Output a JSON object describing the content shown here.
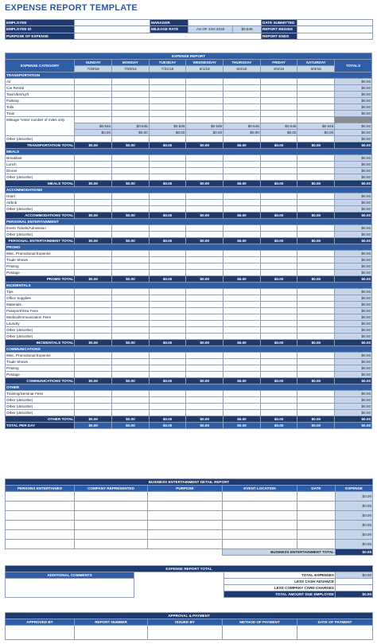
{
  "title": "EXPENSE REPORT TEMPLATE",
  "header": {
    "employee": "EMPLOYEE",
    "employee_id": "EMPLOYEE ID",
    "purpose": "PURPOSE OF EXPENSE",
    "manager": "MANAGER",
    "mileage_rate": "MILEAGE RATE",
    "mileage_as_of": "AS OF JAN 2018",
    "mileage_value": "$0.545",
    "date_submitted": "DATE SUBMITTED",
    "report_begins": "REPORT BEGINS",
    "report_ends": "REPORT ENDS"
  },
  "main": {
    "title": "EXPENSE REPORT",
    "category_header": "EXPENSE CATEGORY",
    "totals_header": "TOTALS",
    "days": [
      "SUNDAY",
      "MONDAY",
      "TUESDAY",
      "WEDNESDAY",
      "THURSDAY",
      "FRIDAY",
      "SATURDAY"
    ],
    "dates": [
      "7/29/18",
      "7/30/18",
      "7/31/18",
      "8/1/18",
      "8/2/18",
      "8/3/18",
      "8/4/18"
    ],
    "zero": "$0.00",
    "mileage_rate": "$0.545",
    "total_per_day": "TOTAL PER DAY",
    "sections": [
      {
        "name": "TRANSPORTATION",
        "items": [
          "Air",
          "Car Rental",
          "Taxi/Uber/Lyft",
          "Parking",
          "Tolls",
          "Train",
          "Mileage *enter number of miles only",
          "",
          "",
          "Other (describe)"
        ],
        "total": "TRANSPORTATION TOTAL"
      },
      {
        "name": "MEALS",
        "items": [
          "Breakfast",
          "Lunch",
          "Dinner",
          "Other (describe)"
        ],
        "total": "MEALS TOTAL"
      },
      {
        "name": "ACCOMMODATIONS",
        "items": [
          "Hotel",
          "Airbnb",
          "Other (describe)"
        ],
        "total": "ACCOMMODATIONS TOTAL"
      },
      {
        "name": "PERSONAL ENTERTAINMENT",
        "items": [
          "Event Tickets/Admission",
          "Other (describe)"
        ],
        "total": "PERSONAL ENTERTAINMENT TOTAL"
      },
      {
        "name": "PROMO",
        "items": [
          "Misc. Promotional Expense",
          "Trade Shows",
          "Printing",
          "Postage"
        ],
        "total": "PROMO TOTAL"
      },
      {
        "name": "INCIDENTALS",
        "items": [
          "Tips",
          "Office Supplies",
          "Materials",
          "Passport/Visa Fees",
          "Medical/Immunization Fees",
          "Laundry",
          "Other (describe)",
          "Other (describe)"
        ],
        "total": "INCIDENTALS TOTAL"
      },
      {
        "name": "COMMUNICATIONS",
        "items": [
          "Misc. Promotional Expense",
          "Trade Shows",
          "Printing",
          "Postage"
        ],
        "total": "COMMUNICATIONS TOTAL"
      },
      {
        "name": "OTHER",
        "items": [
          "Training/Seminar Fees",
          "Other (describe)",
          "Other (describe)",
          "Other (describe)"
        ],
        "total": "OTHER TOTAL"
      }
    ]
  },
  "entertainment": {
    "title": "BUSINESS ENTERTAINMENT DETAIL REPORT",
    "columns": [
      "PERSONS ENTERTAINED",
      "COMPANY REPRESENTED",
      "PURPOSE",
      "EVENT LOCATION",
      "DATE",
      "EXPENSE"
    ],
    "zero": "$0.00",
    "total_label": "BUSINESS ENTERTAINMENT TOTAL"
  },
  "summary": {
    "title": "EXPENSE REPORT TOTAL",
    "comments": "ADDITIONAL COMMENTS",
    "total_expenses": "TOTAL EXPENSES",
    "less_cash": "LESS CASH ADVANCE",
    "less_card": "LESS COMPANY CARD CHARGES",
    "total_due": "TOTAL AMOUNT DUE EMPLOYEE",
    "total_value": "$0.00",
    "due_value": "$0.00"
  },
  "approval": {
    "title": "APPROVAL & PAYMENT",
    "columns": [
      "APPROVED BY",
      "REPORT NUMBER",
      "ISSUED BY",
      "METHOD OF PAYMENT",
      "DATE OF PAYMENT"
    ]
  }
}
